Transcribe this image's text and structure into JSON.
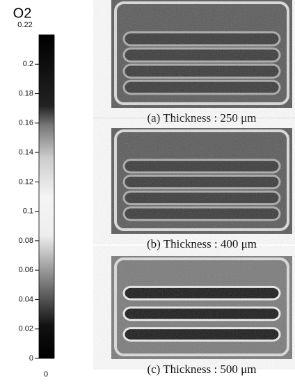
{
  "chart_data": {
    "type": "colorbar",
    "title": "O2",
    "ylim": [
      0,
      0.22
    ],
    "yticks": [
      0,
      0.02,
      0.04,
      0.06,
      0.08,
      0.1,
      0.12,
      0.14,
      0.16,
      0.18,
      0.2
    ],
    "panels": [
      {
        "caption": "(a) Thickness : 250 μm"
      },
      {
        "caption": "(b) Thickness : 400 μm"
      },
      {
        "caption": "(c) Thickness : 500 μm"
      }
    ]
  }
}
